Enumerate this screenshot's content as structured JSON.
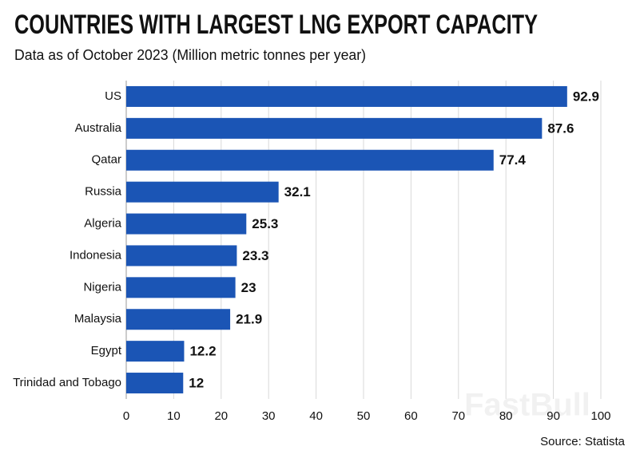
{
  "chart_data": {
    "type": "bar",
    "orientation": "horizontal",
    "title": "COUNTRIES WITH LARGEST LNG EXPORT CAPACITY",
    "subtitle": "Data as of October 2023  (Million metric tonnes per year)",
    "source": "Source: Statista",
    "watermark": "FastBull",
    "categories": [
      "US",
      "Australia",
      "Qatar",
      "Russia",
      "Algeria",
      "Indonesia",
      "Nigeria",
      "Malaysia",
      "Egypt",
      "Trinidad and Tobago"
    ],
    "values": [
      92.9,
      87.6,
      77.4,
      32.1,
      25.3,
      23.3,
      23,
      21.9,
      12.2,
      12
    ],
    "color": "#1b55b5",
    "xlim": [
      0,
      100
    ],
    "xticks": [
      0,
      10,
      20,
      30,
      40,
      50,
      60,
      70,
      80,
      90,
      100
    ],
    "grid": true
  }
}
